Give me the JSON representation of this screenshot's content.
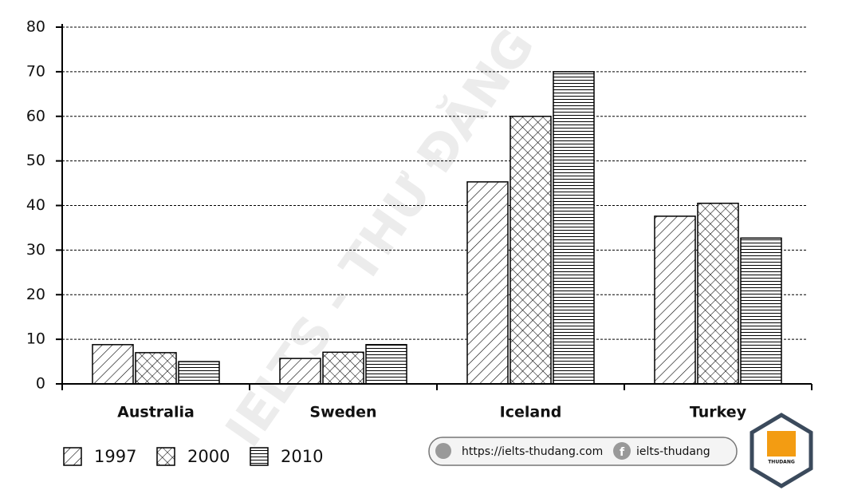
{
  "chart_data": {
    "type": "bar",
    "categories": [
      "Australia",
      "Sweden",
      "Iceland",
      "Turkey"
    ],
    "series": [
      {
        "name": "1997",
        "color": "#000000",
        "pattern": "diagonal",
        "values": [
          8.8,
          5.7,
          45.3,
          37.6
        ]
      },
      {
        "name": "2000",
        "color": "#000000",
        "pattern": "crosshatch",
        "values": [
          7,
          7.1,
          60,
          40.5
        ]
      },
      {
        "name": "2010",
        "color": "#000000",
        "pattern": "horizontal",
        "values": [
          5,
          8.8,
          70,
          32.7
        ]
      }
    ],
    "ylim": [
      0,
      80
    ],
    "yticks": [
      0,
      10,
      20,
      30,
      40,
      50,
      60,
      70,
      80
    ],
    "grid": true,
    "legend": "bottom-left"
  },
  "branding": {
    "watermark": "IELTS - THƯ ĐĂNG",
    "website": "https://ielts-thudang.com",
    "facebook": "ielts-thudang",
    "logo": "THUDANG"
  }
}
